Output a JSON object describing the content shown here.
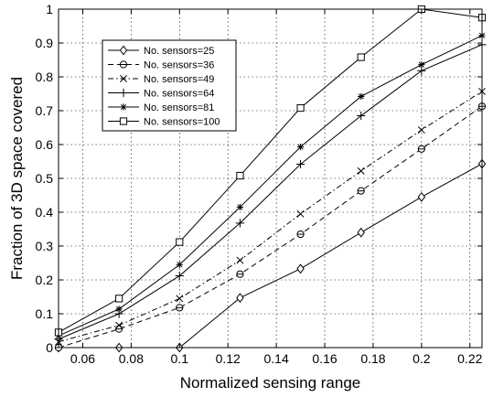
{
  "chart_data": {
    "type": "line",
    "title": "",
    "xlabel": "Normalized sensing range",
    "ylabel": "Fraction of 3D space covered",
    "xlim": [
      0.05,
      0.225
    ],
    "ylim": [
      0,
      1
    ],
    "x_ticks": [
      "0.06",
      "0.08",
      "0.1",
      "0.12",
      "0.14",
      "0.16",
      "0.18",
      "0.2",
      "0.22"
    ],
    "y_ticks": [
      "0",
      "0.1",
      "0.2",
      "0.3",
      "0.4",
      "0.5",
      "0.6",
      "0.7",
      "0.8",
      "0.9",
      "1"
    ],
    "grid": true,
    "legend_position": "top-left",
    "x": [
      0.05,
      0.075,
      0.1,
      0.125,
      0.15,
      0.175,
      0.2,
      0.225
    ],
    "series": [
      {
        "name": "No. sensors=25",
        "marker": "diamond",
        "line": "solid",
        "values": [
          0.0,
          0.0,
          0.0,
          0.147,
          0.233,
          0.34,
          0.445,
          0.543
        ]
      },
      {
        "name": "No. sensors=36",
        "marker": "circle-bar",
        "line": "dashed",
        "values": [
          0.0,
          0.055,
          0.118,
          0.217,
          0.335,
          0.463,
          0.587,
          0.713
        ]
      },
      {
        "name": "No. sensors=49",
        "marker": "x",
        "line": "dashdot",
        "values": [
          0.017,
          0.066,
          0.145,
          0.258,
          0.395,
          0.522,
          0.643,
          0.757
        ]
      },
      {
        "name": "No. sensors=64",
        "marker": "plus",
        "line": "solid",
        "values": [
          0.025,
          0.1,
          0.212,
          0.368,
          0.542,
          0.685,
          0.818,
          0.895
        ]
      },
      {
        "name": "No. sensors=81",
        "marker": "star",
        "line": "solid",
        "values": [
          0.035,
          0.114,
          0.245,
          0.415,
          0.593,
          0.742,
          0.836,
          0.922
        ]
      },
      {
        "name": "No. sensors=100",
        "marker": "square",
        "line": "solid",
        "values": [
          0.045,
          0.145,
          0.312,
          0.508,
          0.708,
          0.858,
          1.0,
          0.975
        ]
      }
    ]
  }
}
